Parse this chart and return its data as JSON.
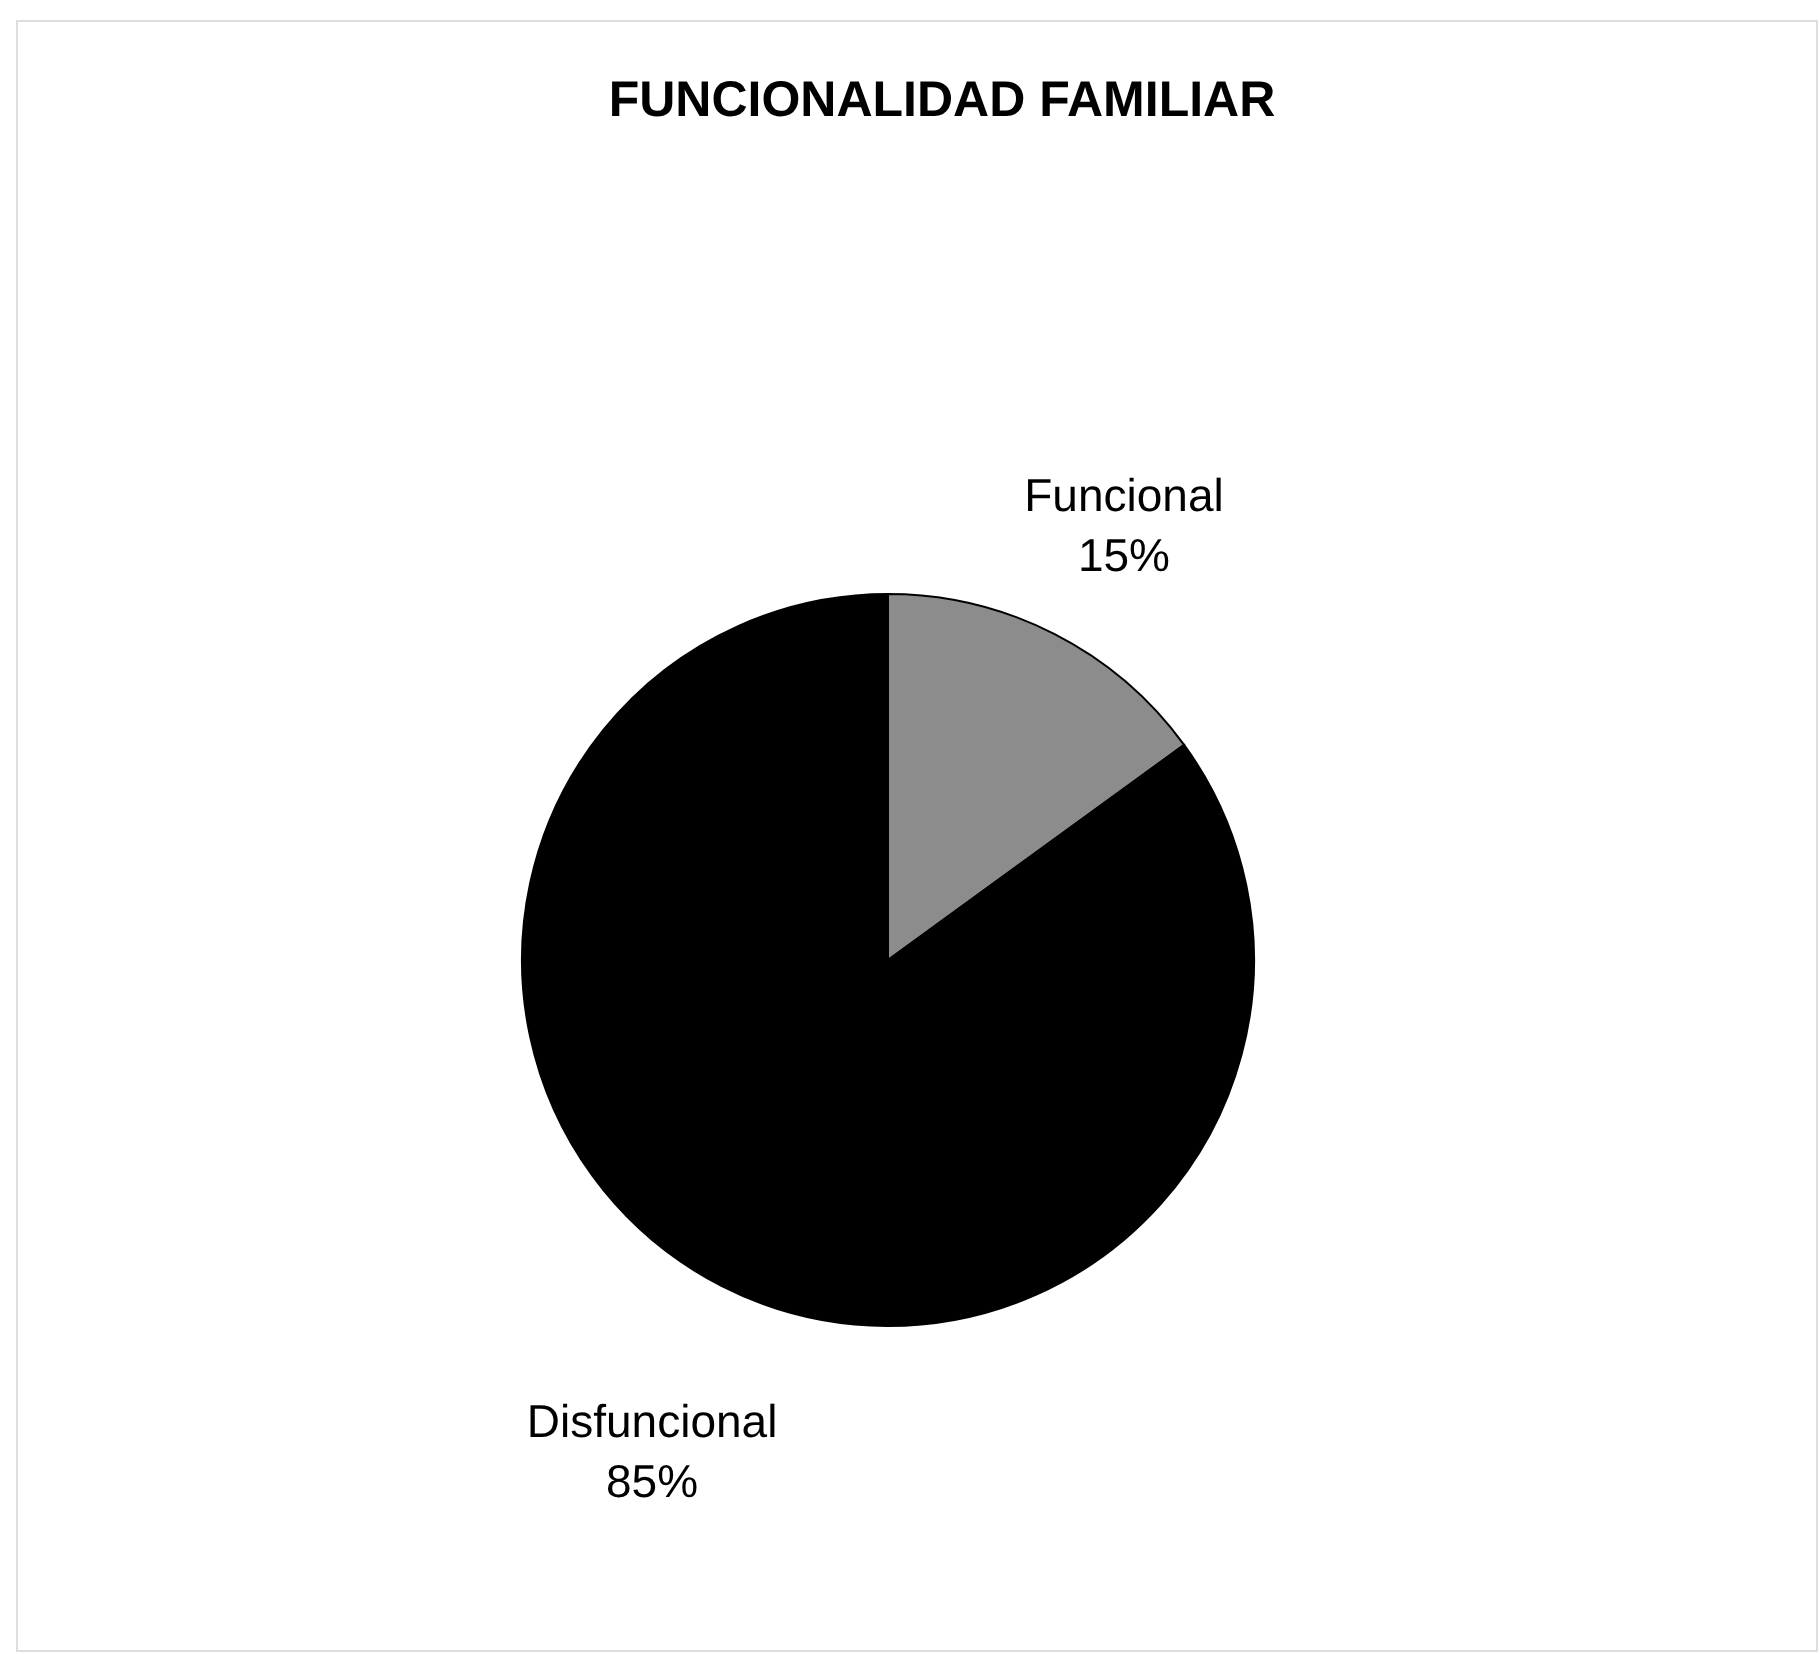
{
  "chart_data": {
    "type": "pie",
    "title": "FUNCIONALIDAD FAMILIAR",
    "categories": [
      "Funcional",
      "Disfuncional"
    ],
    "values": [
      15,
      85
    ],
    "colors": [
      "#8c8c8c",
      "#000000"
    ],
    "value_labels": [
      "15%",
      "85%"
    ]
  }
}
